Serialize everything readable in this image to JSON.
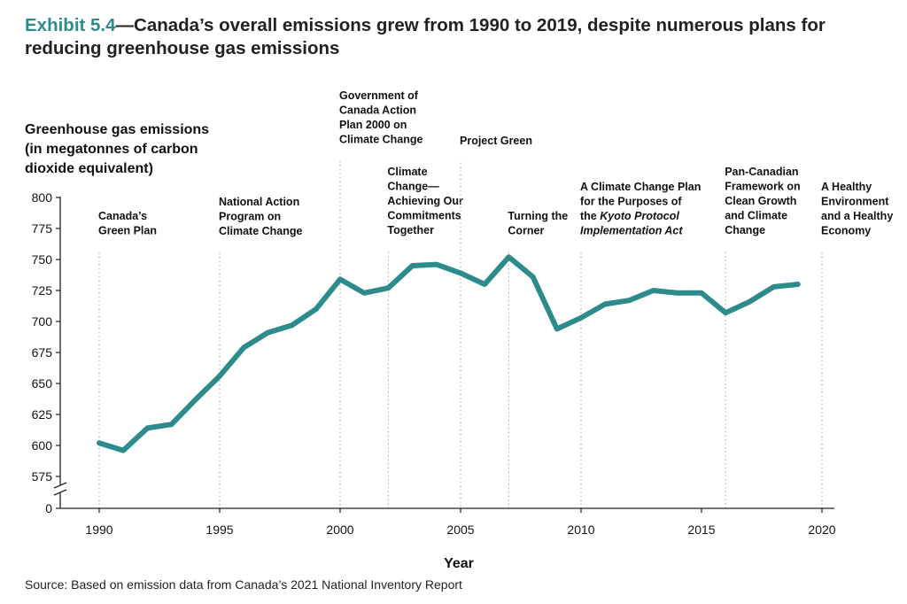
{
  "title": {
    "exhibit": "Exhibit 5.4",
    "text": "—Canada’s overall emissions grew from 1990 to 2019, despite numerous plans for reducing greenhouse gas emissions"
  },
  "source": "Source: Based on emission data from Canada’s 2021 National Inventory Report",
  "chart_data": {
    "type": "line",
    "ylabel": "Greenhouse gas emissions (in megatonnes of carbon dioxide equivalent)",
    "xlabel": "Year",
    "x": [
      1990,
      1991,
      1992,
      1993,
      1994,
      1995,
      1996,
      1997,
      1998,
      1999,
      2000,
      2001,
      2002,
      2003,
      2004,
      2005,
      2006,
      2007,
      2008,
      2009,
      2010,
      2011,
      2012,
      2013,
      2014,
      2015,
      2016,
      2017,
      2018,
      2019
    ],
    "series": [
      {
        "values": [
          602,
          596,
          614,
          617,
          637,
          656,
          679,
          691,
          697,
          710,
          734,
          723,
          727,
          745,
          746,
          739,
          730,
          752,
          736,
          694,
          703,
          714,
          717,
          725,
          723,
          723,
          707,
          716,
          728,
          730
        ]
      }
    ],
    "xticks": [
      1990,
      1995,
      2000,
      2005,
      2010,
      2015,
      2020
    ],
    "yticks": [
      0,
      575,
      600,
      625,
      650,
      675,
      700,
      725,
      750,
      775,
      800
    ],
    "ylim": [
      575,
      800
    ],
    "axis_break": true,
    "line_color": "#2e8b8b",
    "annotations": [
      {
        "year": 1990,
        "lines": [
          "Canada’s",
          "Green Plan"
        ],
        "level": 248
      },
      {
        "year": 1995,
        "lines": [
          "National Action",
          "Program on",
          "Climate Change"
        ],
        "level": 232
      },
      {
        "year": 2000,
        "lines": [
          "Government of",
          "Canada Action",
          "Plan 2000 on",
          "Climate Change"
        ],
        "level": 112
      },
      {
        "year": 2002,
        "lines": [
          "Climate",
          "Change—",
          "Achieving Our",
          "Commitments",
          "Together"
        ],
        "level": 198
      },
      {
        "year": 2005,
        "lines": [
          "Project Green"
        ],
        "level": 163
      },
      {
        "year": 2007,
        "lines": [
          "Turning the",
          "Corner"
        ],
        "level": 248
      },
      {
        "year": 2010,
        "lines": [
          "A Climate Change Plan",
          "for the Purposes of",
          "the |Kyoto Protocol|",
          "|Implementation Act|"
        ],
        "level": 215
      },
      {
        "year": 2016,
        "lines": [
          "Pan-Canadian",
          "Framework on",
          "Clean Growth",
          "and Climate",
          "Change"
        ],
        "level": 198
      },
      {
        "year": 2020,
        "lines": [
          "A Healthy",
          "Environment",
          "and a Healthy",
          "Economy"
        ],
        "level": 215
      }
    ]
  }
}
